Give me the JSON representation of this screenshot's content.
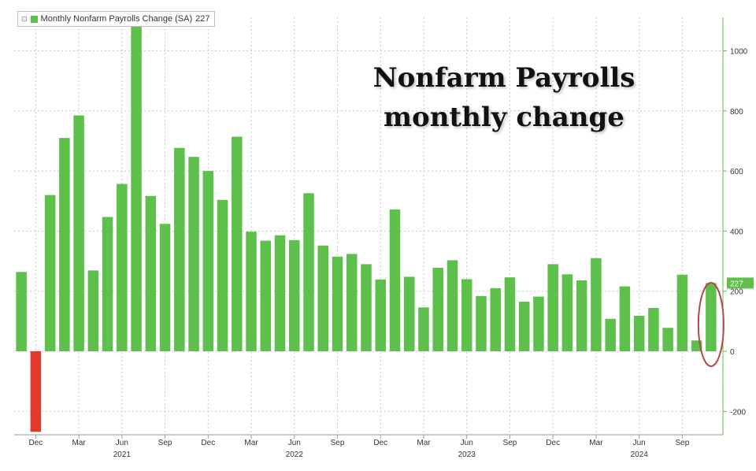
{
  "legend": {
    "toggle": "⊡",
    "label": "Monthly Nonfarm Payrolls Change (SA)",
    "last_value": "227"
  },
  "title": {
    "line1": "Nonfarm Payrolls",
    "line2": "monthly change"
  },
  "colors": {
    "positive": "#5cc04a",
    "negative": "#e03a2a",
    "highlight_ellipse": "#b5464a",
    "last_value_tag": "#5cc04a"
  },
  "chart_data": {
    "type": "bar",
    "title": "Nonfarm Payrolls monthly change",
    "series": [
      {
        "name": "Monthly Nonfarm Payrolls Change (SA)",
        "x": [
          "2020-11",
          "2020-12",
          "2021-01",
          "2021-02",
          "2021-03",
          "2021-04",
          "2021-05",
          "2021-06",
          "2021-07",
          "2021-08",
          "2021-09",
          "2021-10",
          "2021-11",
          "2021-12",
          "2022-01",
          "2022-02",
          "2022-03",
          "2022-04",
          "2022-05",
          "2022-06",
          "2022-07",
          "2022-08",
          "2022-09",
          "2022-10",
          "2022-11",
          "2022-12",
          "2023-01",
          "2023-02",
          "2023-03",
          "2023-04",
          "2023-05",
          "2023-06",
          "2023-07",
          "2023-08",
          "2023-09",
          "2023-10",
          "2023-11",
          "2023-12",
          "2024-01",
          "2024-02",
          "2024-03",
          "2024-04",
          "2024-05",
          "2024-06",
          "2024-07",
          "2024-08",
          "2024-09",
          "2024-10",
          "2024-11"
        ],
        "values": [
          264,
          -268,
          520,
          710,
          785,
          269,
          447,
          557,
          1091,
          517,
          424,
          677,
          647,
          600,
          504,
          714,
          398,
          368,
          386,
          370,
          526,
          352,
          315,
          324,
          290,
          239,
          472,
          248,
          146,
          278,
          303,
          240,
          184,
          210,
          246,
          165,
          182,
          290,
          256,
          236,
          310,
          108,
          216,
          118,
          144,
          78,
          255,
          36,
          227
        ]
      }
    ],
    "y_axis": {
      "side": "right",
      "ylim": [
        -270,
        1140
      ],
      "ticks": [
        -200,
        0,
        200,
        400,
        600,
        800,
        1000
      ],
      "tick_labels": [
        "-200",
        "0",
        "200",
        "400",
        "600",
        "800",
        "1000"
      ]
    },
    "x_axis": {
      "month_ticks": [
        {
          "month": "2020-12",
          "label": "Dec"
        },
        {
          "month": "2021-03",
          "label": "Mar"
        },
        {
          "month": "2021-06",
          "label": "Jun"
        },
        {
          "month": "2021-09",
          "label": "Sep"
        },
        {
          "month": "2021-12",
          "label": "Dec"
        },
        {
          "month": "2022-03",
          "label": "Mar"
        },
        {
          "month": "2022-06",
          "label": "Jun"
        },
        {
          "month": "2022-09",
          "label": "Sep"
        },
        {
          "month": "2022-12",
          "label": "Dec"
        },
        {
          "month": "2023-03",
          "label": "Mar"
        },
        {
          "month": "2023-06",
          "label": "Jun"
        },
        {
          "month": "2023-09",
          "label": "Sep"
        },
        {
          "month": "2023-12",
          "label": "Dec"
        },
        {
          "month": "2024-03",
          "label": "Mar"
        },
        {
          "month": "2024-06",
          "label": "Jun"
        },
        {
          "month": "2024-09",
          "label": "Sep"
        }
      ],
      "year_labels": [
        {
          "month": "2021-06",
          "label": "2021"
        },
        {
          "month": "2022-06",
          "label": "2022"
        },
        {
          "month": "2023-06",
          "label": "2023"
        },
        {
          "month": "2024-06",
          "label": "2024"
        }
      ]
    },
    "grid": true,
    "legend_position": "top-left",
    "last_value_label": "227",
    "highlight": {
      "month": "2024-11",
      "shape": "ellipse"
    }
  }
}
